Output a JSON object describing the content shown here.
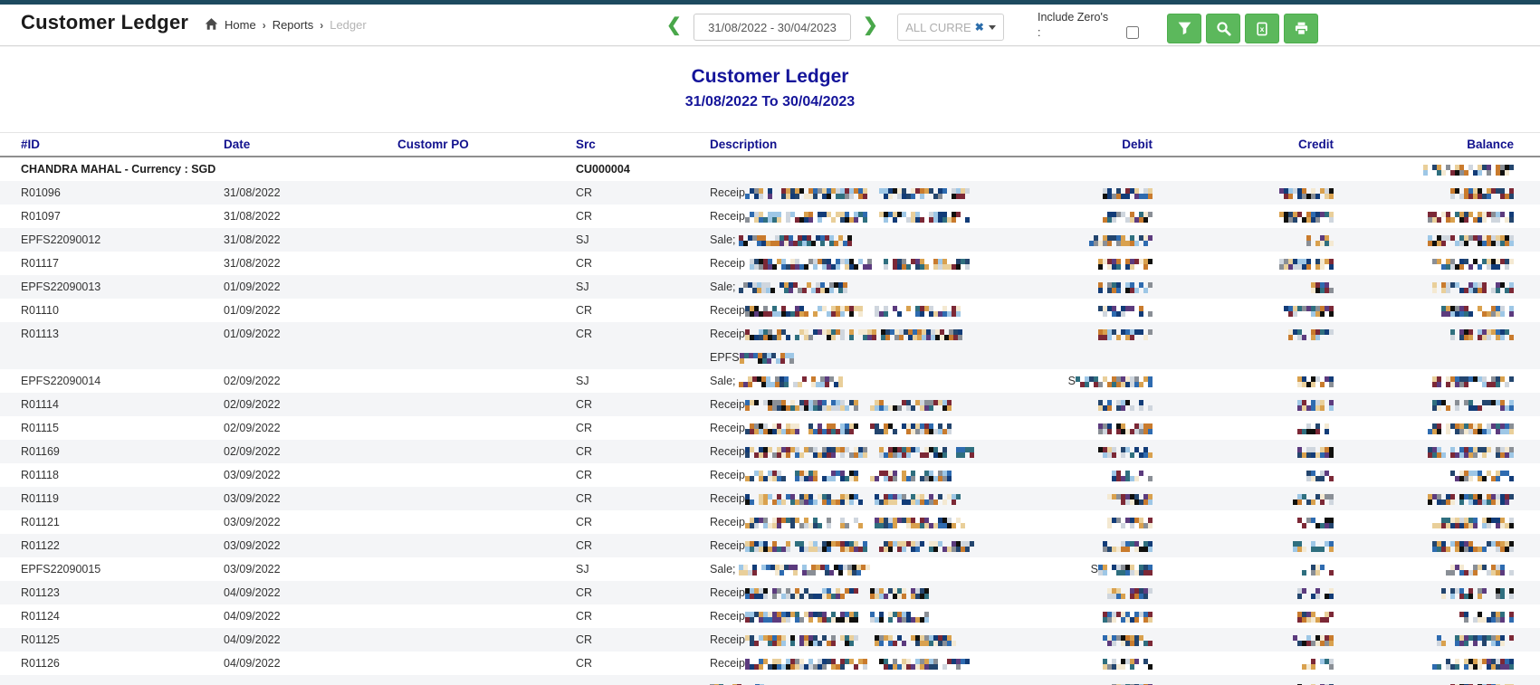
{
  "topbar": {
    "title": "Customer Ledger",
    "breadcrumb": {
      "home": "Home",
      "sep1": "›",
      "reports": "Reports",
      "sep2": "›",
      "current": "Ledger"
    },
    "prev_arrow": "❮",
    "next_arrow": "❯",
    "date_range_value": "31/08/2022 - 30/04/2023",
    "currency_filter_label": "ALL CURRE",
    "currency_clear_icon": "✖",
    "include_zeros_label": "Include Zero's",
    "include_zeros_colon": ":",
    "buttons": [
      {
        "name": "filter"
      },
      {
        "name": "search"
      },
      {
        "name": "export-excel"
      },
      {
        "name": "print"
      }
    ]
  },
  "report": {
    "title": "Customer Ledger",
    "subtitle": "31/08/2022 To 30/04/2023"
  },
  "table": {
    "columns": {
      "id": "#ID",
      "date": "Date",
      "customr_po": "Customr PO",
      "src": "Src",
      "description": "Description",
      "debit": "Debit",
      "credit": "Credit",
      "balance": "Balance"
    },
    "group_row": {
      "label": "CHANDRA MAHAL - Currency : SGD",
      "src_code": "CU000004",
      "balance_redacted": true,
      "balance_mosaic_w": 100
    },
    "rows": [
      {
        "id": "R01096",
        "date": "31/08/2022",
        "customr_po": "",
        "src": "CR",
        "desc_prefix": "Receip",
        "desc_mosaic": [
          135,
          100
        ],
        "debit_prefix": "",
        "debit_mosaic": 55,
        "credit_mosaic": 60,
        "balance_mosaic": 70
      },
      {
        "id": "R01097",
        "date": "31/08/2022",
        "customr_po": "",
        "src": "CR",
        "desc_prefix": "Receip",
        "desc_mosaic": [
          135,
          100
        ],
        "debit_prefix": "",
        "debit_mosaic": 55,
        "credit_mosaic": 60,
        "balance_mosaic": 95
      },
      {
        "id": "EPFS22090012",
        "date": "31/08/2022",
        "customr_po": "",
        "src": "SJ",
        "desc_prefix": "Sale; ",
        "desc_mosaic": [
          125
        ],
        "debit_prefix": "",
        "debit_mosaic": 70,
        "credit_mosaic": 30,
        "balance_mosaic": 95
      },
      {
        "id": "R01117",
        "date": "31/08/2022",
        "customr_po": "",
        "src": "CR",
        "desc_prefix": "Receip",
        "desc_mosaic": [
          140,
          95
        ],
        "debit_prefix": "",
        "debit_mosaic": 60,
        "credit_mosaic": 60,
        "balance_mosaic": 90
      },
      {
        "id": "EPFS22090013",
        "date": "01/09/2022",
        "customr_po": "",
        "src": "SJ",
        "desc_prefix": "Sale; ",
        "desc_mosaic": [
          120
        ],
        "debit_prefix": "",
        "debit_mosaic": 60,
        "credit_mosaic": 25,
        "balance_mosaic": 90
      },
      {
        "id": "R01110",
        "date": "01/09/2022",
        "customr_po": "",
        "src": "CR",
        "desc_prefix": "Receip",
        "desc_mosaic": [
          130,
          95
        ],
        "debit_prefix": "",
        "debit_mosaic": 60,
        "credit_mosaic": 55,
        "balance_mosaic": 80
      },
      {
        "id": "R01113",
        "date": "01/09/2022",
        "customr_po": "",
        "src": "CR",
        "desc_prefix": "Receip",
        "desc_mosaic": [
          240
        ],
        "desc_line2_prefix": "EPFS",
        "desc_line2_mosaic": 60,
        "debit_prefix": "",
        "debit_mosaic": 60,
        "credit_mosaic": 50,
        "balance_mosaic": 70
      },
      {
        "id": "EPFS22090014",
        "date": "02/09/2022",
        "customr_po": "",
        "src": "SJ",
        "desc_prefix": "Sale; ",
        "desc_mosaic": [
          115
        ],
        "debit_prefix": "S",
        "debit_mosaic": 85,
        "credit_mosaic": 40,
        "balance_mosaic": 90
      },
      {
        "id": "R01114",
        "date": "02/09/2022",
        "customr_po": "",
        "src": "CR",
        "desc_prefix": "Receip",
        "desc_mosaic": [
          125,
          90
        ],
        "debit_prefix": "",
        "debit_mosaic": 60,
        "credit_mosaic": 40,
        "balance_mosaic": 90
      },
      {
        "id": "R01115",
        "date": "02/09/2022",
        "customr_po": "",
        "src": "CR",
        "desc_prefix": "Receip",
        "desc_mosaic": [
          125,
          90
        ],
        "debit_prefix": "",
        "debit_mosaic": 60,
        "credit_mosaic": 40,
        "balance_mosaic": 95
      },
      {
        "id": "R01169",
        "date": "02/09/2022",
        "customr_po": "",
        "src": "CR",
        "desc_prefix": "Receip",
        "desc_mosaic": [
          135,
          105
        ],
        "debit_prefix": "",
        "debit_mosaic": 60,
        "credit_mosaic": 50,
        "balance_mosaic": 95
      },
      {
        "id": "R01118",
        "date": "03/09/2022",
        "customr_po": "",
        "src": "CR",
        "desc_prefix": "Receip",
        "desc_mosaic": [
          125,
          90
        ],
        "debit_prefix": "",
        "debit_mosaic": 45,
        "credit_mosaic": 30,
        "balance_mosaic": 70
      },
      {
        "id": "R01119",
        "date": "03/09/2022",
        "customr_po": "",
        "src": "CR",
        "desc_prefix": "Receip",
        "desc_mosaic": [
          130,
          95
        ],
        "debit_prefix": "",
        "debit_mosaic": 50,
        "credit_mosaic": 45,
        "balance_mosaic": 95
      },
      {
        "id": "R01121",
        "date": "03/09/2022",
        "customr_po": "",
        "src": "CR",
        "desc_prefix": "Receip",
        "desc_mosaic": [
          130,
          100
        ],
        "debit_prefix": "",
        "debit_mosaic": 50,
        "credit_mosaic": 40,
        "balance_mosaic": 90
      },
      {
        "id": "R01122",
        "date": "03/09/2022",
        "customr_po": "",
        "src": "CR",
        "desc_prefix": "Receip",
        "desc_mosaic": [
          135,
          105
        ],
        "debit_prefix": "",
        "debit_mosaic": 55,
        "credit_mosaic": 45,
        "balance_mosaic": 90
      },
      {
        "id": "EPFS22090015",
        "date": "03/09/2022",
        "customr_po": "",
        "src": "SJ",
        "desc_prefix": "Sale; ",
        "desc_mosaic": [
          145
        ],
        "debit_prefix": "S",
        "debit_mosaic": 60,
        "credit_mosaic": 35,
        "balance_mosaic": 75
      },
      {
        "id": "R01123",
        "date": "04/09/2022",
        "customr_po": "",
        "src": "CR",
        "desc_prefix": "Receip",
        "desc_mosaic": [
          125,
          65
        ],
        "debit_prefix": "",
        "debit_mosaic": 50,
        "credit_mosaic": 40,
        "balance_mosaic": 80
      },
      {
        "id": "R01124",
        "date": "04/09/2022",
        "customr_po": "",
        "src": "CR",
        "desc_prefix": "Receip",
        "desc_mosaic": [
          125,
          65
        ],
        "debit_prefix": "",
        "debit_mosaic": 55,
        "credit_mosaic": 40,
        "balance_mosaic": 60
      },
      {
        "id": "R01125",
        "date": "04/09/2022",
        "customr_po": "",
        "src": "CR",
        "desc_prefix": "Receip",
        "desc_mosaic": [
          130,
          90
        ],
        "debit_prefix": "",
        "debit_mosaic": 55,
        "credit_mosaic": 45,
        "balance_mosaic": 85
      },
      {
        "id": "R01126",
        "date": "04/09/2022",
        "customr_po": "",
        "src": "CR",
        "desc_prefix": "Receip",
        "desc_mosaic": [
          135,
          100
        ],
        "debit_prefix": "",
        "debit_mosaic": 55,
        "credit_mosaic": 35,
        "balance_mosaic": 90
      }
    ],
    "redaction_note": "amount and description values are pixelated/redacted in source image"
  },
  "colors": {
    "topstrip": "#1d4a5f",
    "accent_green": "#5cb85c",
    "navy_heading": "#14149a",
    "table_header_text": "#12128e",
    "stripe": "#f4f5f7",
    "clear_icon_blue": "#2b6dab"
  }
}
